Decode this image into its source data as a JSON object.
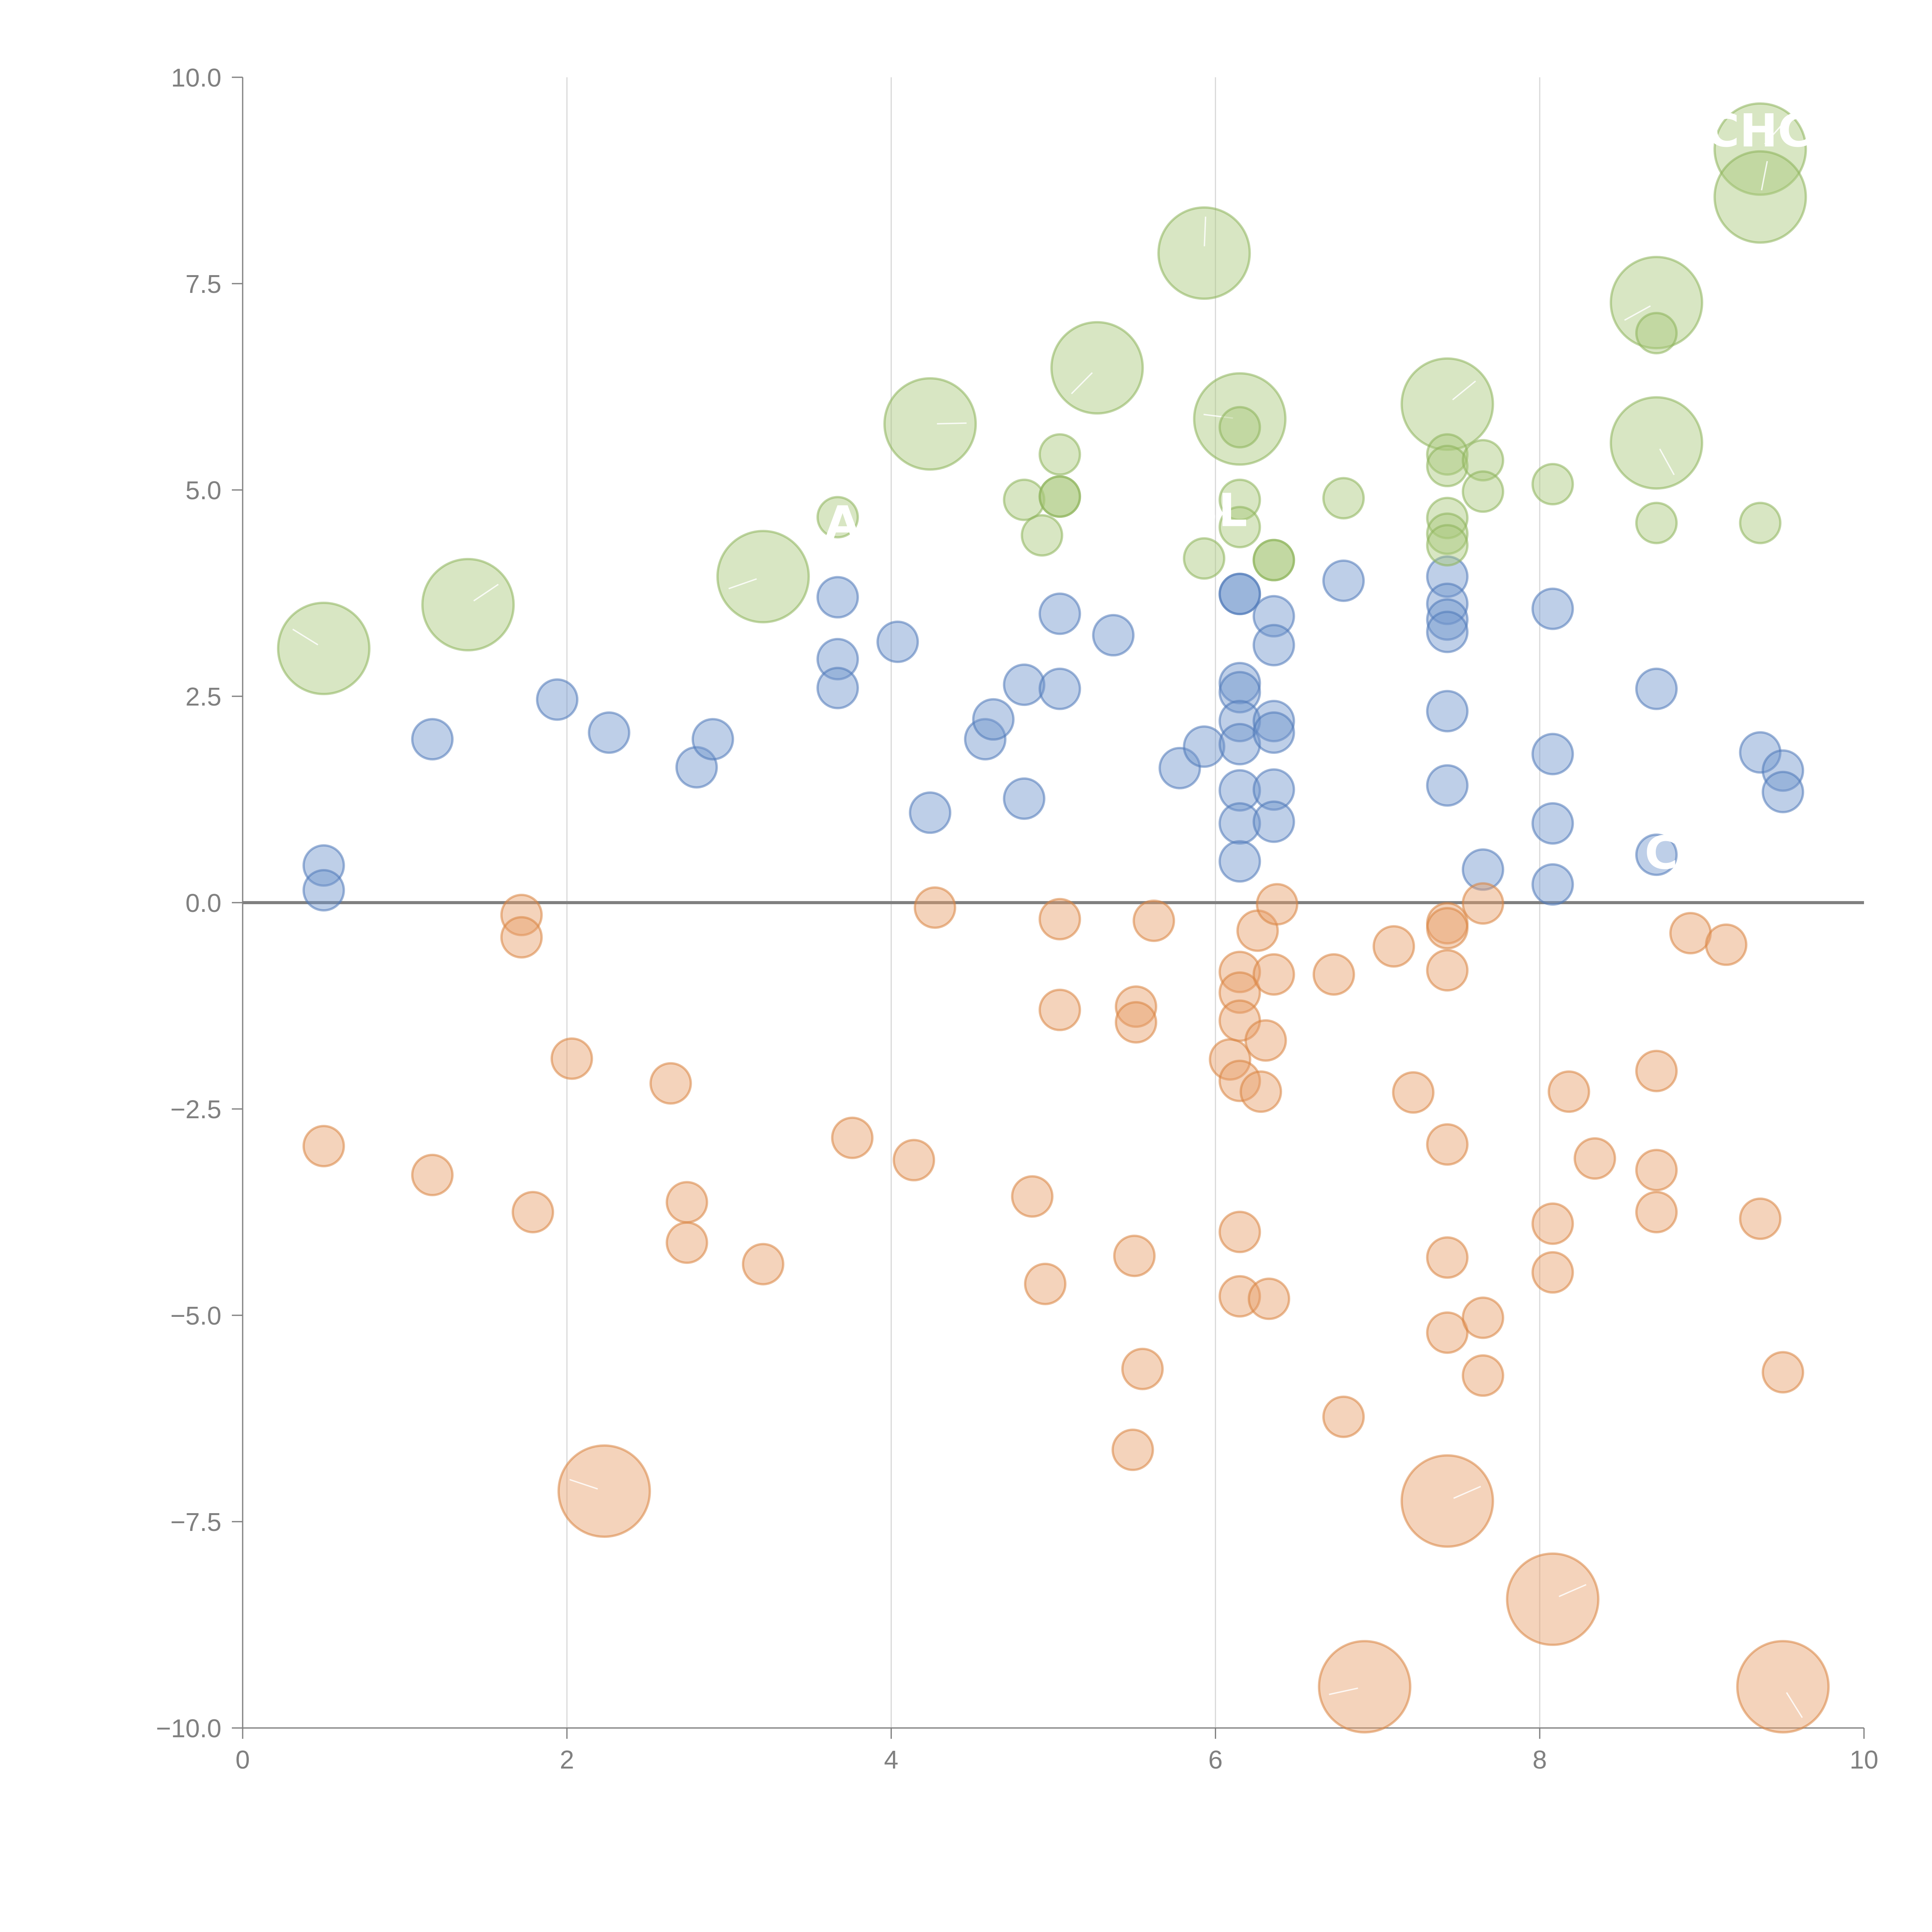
{
  "chart_data": {
    "type": "scatter",
    "title": "",
    "xlabel": "",
    "ylabel": "",
    "xlim": [
      0,
      10
    ],
    "ylim": [
      -10,
      10
    ],
    "x_ticks": [
      0,
      2,
      4,
      6,
      8,
      10
    ],
    "x_tick_labels": [
      "0",
      "2",
      "4",
      "6",
      "8",
      "10"
    ],
    "y_ticks": [
      10,
      7.5,
      5,
      2.5,
      0,
      -2.5,
      -5,
      -7.5,
      -10
    ],
    "y_tick_labels": [
      "10.0",
      "7.5",
      "5.0",
      "2.5",
      "0.0",
      "−2.5",
      "−5.0",
      "−7.5",
      "−10.0"
    ],
    "vertical_grid_at": [
      2,
      4,
      6,
      8
    ],
    "reference_line_y": 0,
    "colors": {
      "blue_fill": "#6f95cc",
      "blue_stroke": "#4f79b8",
      "orange_fill": "#e79d68",
      "orange_stroke": "#d9833f",
      "green_fill": "#a8c879",
      "green_stroke": "#8db25a",
      "axis": "#808080",
      "grid": "#d9d9d9"
    },
    "bubble_labels": [
      {
        "text": "BL",
        "x": 6.0,
        "y": 4.75
      },
      {
        "text": "A",
        "x": 3.7,
        "y": 4.6
      },
      {
        "text": "C",
        "x": 8.75,
        "y": 0.6
      },
      {
        "text": "CHC",
        "x": 9.35,
        "y": 9.35
      }
    ],
    "series": [
      {
        "name": "positive",
        "color": "blue",
        "points": [
          {
            "x": 0.5,
            "y": 0.45,
            "size": 1
          },
          {
            "x": 0.5,
            "y": 0.15,
            "size": 1
          },
          {
            "x": 1.17,
            "y": 1.98,
            "size": 1
          },
          {
            "x": 1.94,
            "y": 2.46,
            "size": 1
          },
          {
            "x": 2.26,
            "y": 2.06,
            "size": 1
          },
          {
            "x": 2.8,
            "y": 1.64,
            "size": 1
          },
          {
            "x": 2.9,
            "y": 1.98,
            "size": 1
          },
          {
            "x": 3.67,
            "y": 3.7,
            "size": 1
          },
          {
            "x": 3.67,
            "y": 2.95,
            "size": 1
          },
          {
            "x": 3.67,
            "y": 2.6,
            "size": 1
          },
          {
            "x": 4.04,
            "y": 3.16,
            "size": 1
          },
          {
            "x": 4.24,
            "y": 1.09,
            "size": 1
          },
          {
            "x": 4.58,
            "y": 1.98,
            "size": 1
          },
          {
            "x": 4.63,
            "y": 2.22,
            "size": 1
          },
          {
            "x": 4.82,
            "y": 2.64,
            "size": 1
          },
          {
            "x": 4.82,
            "y": 1.26,
            "size": 1
          },
          {
            "x": 5.04,
            "y": 3.5,
            "size": 1
          },
          {
            "x": 5.04,
            "y": 2.59,
            "size": 1
          },
          {
            "x": 5.37,
            "y": 3.24,
            "size": 1
          },
          {
            "x": 5.78,
            "y": 1.63,
            "size": 1
          },
          {
            "x": 5.93,
            "y": 1.89,
            "size": 1
          },
          {
            "x": 6.15,
            "y": 3.74,
            "size": 1
          },
          {
            "x": 6.15,
            "y": 3.74,
            "size": 1
          },
          {
            "x": 6.15,
            "y": 2.66,
            "size": 1
          },
          {
            "x": 6.15,
            "y": 2.55,
            "size": 1
          },
          {
            "x": 6.15,
            "y": 2.2,
            "size": 1
          },
          {
            "x": 6.15,
            "y": 1.92,
            "size": 1
          },
          {
            "x": 6.15,
            "y": 1.36,
            "size": 1
          },
          {
            "x": 6.15,
            "y": 0.96,
            "size": 1
          },
          {
            "x": 6.15,
            "y": 0.5,
            "size": 1
          },
          {
            "x": 6.36,
            "y": 3.47,
            "size": 1
          },
          {
            "x": 6.36,
            "y": 3.12,
            "size": 1
          },
          {
            "x": 6.36,
            "y": 2.2,
            "size": 1
          },
          {
            "x": 6.36,
            "y": 2.06,
            "size": 1
          },
          {
            "x": 6.36,
            "y": 1.37,
            "size": 1
          },
          {
            "x": 6.36,
            "y": 0.98,
            "size": 1
          },
          {
            "x": 6.79,
            "y": 3.9,
            "size": 1
          },
          {
            "x": 7.43,
            "y": 3.95,
            "size": 1
          },
          {
            "x": 7.43,
            "y": 3.62,
            "size": 1
          },
          {
            "x": 7.43,
            "y": 3.43,
            "size": 1
          },
          {
            "x": 7.43,
            "y": 3.28,
            "size": 1
          },
          {
            "x": 7.43,
            "y": 2.32,
            "size": 1
          },
          {
            "x": 7.43,
            "y": 1.42,
            "size": 1
          },
          {
            "x": 7.65,
            "y": 0.4,
            "size": 1
          },
          {
            "x": 8.08,
            "y": 3.56,
            "size": 1
          },
          {
            "x": 8.08,
            "y": 1.8,
            "size": 1
          },
          {
            "x": 8.08,
            "y": 0.96,
            "size": 1
          },
          {
            "x": 8.08,
            "y": 0.22,
            "size": 1
          },
          {
            "x": 8.72,
            "y": 2.59,
            "size": 1
          },
          {
            "x": 8.72,
            "y": 0.58,
            "size": 1
          },
          {
            "x": 9.36,
            "y": 1.82,
            "size": 1
          },
          {
            "x": 9.5,
            "y": 1.6,
            "size": 1
          },
          {
            "x": 9.5,
            "y": 1.34,
            "size": 1
          }
        ]
      },
      {
        "name": "negative",
        "color": "orange",
        "points": [
          {
            "x": 0.5,
            "y": -2.95,
            "size": 1
          },
          {
            "x": 1.17,
            "y": -3.3,
            "size": 1
          },
          {
            "x": 1.72,
            "y": -0.15,
            "size": 1
          },
          {
            "x": 1.72,
            "y": -0.42,
            "size": 1
          },
          {
            "x": 1.79,
            "y": -3.75,
            "size": 1
          },
          {
            "x": 2.03,
            "y": -1.89,
            "size": 1
          },
          {
            "x": 2.23,
            "y": -7.13,
            "size": 3
          },
          {
            "x": 2.64,
            "y": -2.19,
            "size": 1
          },
          {
            "x": 2.74,
            "y": -3.63,
            "size": 1
          },
          {
            "x": 2.74,
            "y": -4.12,
            "size": 1
          },
          {
            "x": 3.21,
            "y": -4.38,
            "size": 1
          },
          {
            "x": 3.76,
            "y": -2.85,
            "size": 1
          },
          {
            "x": 4.14,
            "y": -3.12,
            "size": 1
          },
          {
            "x": 4.27,
            "y": -0.06,
            "size": 1
          },
          {
            "x": 4.87,
            "y": -3.56,
            "size": 1
          },
          {
            "x": 4.95,
            "y": -4.62,
            "size": 1
          },
          {
            "x": 5.04,
            "y": -0.2,
            "size": 1
          },
          {
            "x": 5.04,
            "y": -1.3,
            "size": 1
          },
          {
            "x": 5.49,
            "y": -6.63,
            "size": 1
          },
          {
            "x": 5.5,
            "y": -4.28,
            "size": 1
          },
          {
            "x": 5.51,
            "y": -1.26,
            "size": 1
          },
          {
            "x": 5.51,
            "y": -1.45,
            "size": 1
          },
          {
            "x": 5.55,
            "y": -5.65,
            "size": 1
          },
          {
            "x": 5.62,
            "y": -0.22,
            "size": 1
          },
          {
            "x": 6.09,
            "y": -1.9,
            "size": 1
          },
          {
            "x": 6.15,
            "y": -0.84,
            "size": 1
          },
          {
            "x": 6.15,
            "y": -1.09,
            "size": 1
          },
          {
            "x": 6.15,
            "y": -1.43,
            "size": 1
          },
          {
            "x": 6.15,
            "y": -2.16,
            "size": 1
          },
          {
            "x": 6.15,
            "y": -3.99,
            "size": 1
          },
          {
            "x": 6.15,
            "y": -4.77,
            "size": 1
          },
          {
            "x": 6.26,
            "y": -0.34,
            "size": 1
          },
          {
            "x": 6.28,
            "y": -2.29,
            "size": 1
          },
          {
            "x": 6.31,
            "y": -1.67,
            "size": 1
          },
          {
            "x": 6.33,
            "y": -4.8,
            "size": 1
          },
          {
            "x": 6.36,
            "y": -0.87,
            "size": 1
          },
          {
            "x": 6.38,
            "y": -0.02,
            "size": 1
          },
          {
            "x": 6.73,
            "y": -0.87,
            "size": 1
          },
          {
            "x": 6.79,
            "y": -6.23,
            "size": 1
          },
          {
            "x": 6.92,
            "y": -9.5,
            "size": 3
          },
          {
            "x": 7.1,
            "y": -0.53,
            "size": 1
          },
          {
            "x": 7.22,
            "y": -2.3,
            "size": 1
          },
          {
            "x": 7.43,
            "y": -0.25,
            "size": 1
          },
          {
            "x": 7.43,
            "y": -0.31,
            "size": 1
          },
          {
            "x": 7.43,
            "y": -0.82,
            "size": 1
          },
          {
            "x": 7.43,
            "y": -2.93,
            "size": 1
          },
          {
            "x": 7.43,
            "y": -4.3,
            "size": 1
          },
          {
            "x": 7.43,
            "y": -5.21,
            "size": 1
          },
          {
            "x": 7.43,
            "y": -7.25,
            "size": 3
          },
          {
            "x": 7.65,
            "y": -0.01,
            "size": 1
          },
          {
            "x": 7.65,
            "y": -5.03,
            "size": 1
          },
          {
            "x": 7.65,
            "y": -5.73,
            "size": 1
          },
          {
            "x": 8.08,
            "y": -3.89,
            "size": 1
          },
          {
            "x": 8.08,
            "y": -4.48,
            "size": 1
          },
          {
            "x": 8.08,
            "y": -8.44,
            "size": 3
          },
          {
            "x": 8.18,
            "y": -2.29,
            "size": 1
          },
          {
            "x": 8.34,
            "y": -3.1,
            "size": 1
          },
          {
            "x": 8.72,
            "y": -2.04,
            "size": 1
          },
          {
            "x": 8.72,
            "y": -3.24,
            "size": 1
          },
          {
            "x": 8.72,
            "y": -3.75,
            "size": 1
          },
          {
            "x": 8.93,
            "y": -0.37,
            "size": 1
          },
          {
            "x": 9.15,
            "y": -0.51,
            "size": 1
          },
          {
            "x": 9.36,
            "y": -3.83,
            "size": 1
          },
          {
            "x": 9.5,
            "y": -5.69,
            "size": 1
          },
          {
            "x": 9.5,
            "y": -9.5,
            "size": 3
          }
        ]
      },
      {
        "name": "upper",
        "color": "green",
        "points": [
          {
            "x": 0.5,
            "y": 3.08,
            "size": 3
          },
          {
            "x": 1.39,
            "y": 3.61,
            "size": 3
          },
          {
            "x": 3.21,
            "y": 3.95,
            "size": 3
          },
          {
            "x": 3.67,
            "y": 4.67,
            "size": 1
          },
          {
            "x": 4.24,
            "y": 5.8,
            "size": 3
          },
          {
            "x": 4.82,
            "y": 4.88,
            "size": 1
          },
          {
            "x": 4.93,
            "y": 4.45,
            "size": 1
          },
          {
            "x": 5.04,
            "y": 5.43,
            "size": 1
          },
          {
            "x": 5.04,
            "y": 4.92,
            "size": 1
          },
          {
            "x": 5.04,
            "y": 4.92,
            "size": 1
          },
          {
            "x": 5.27,
            "y": 6.48,
            "size": 3
          },
          {
            "x": 5.93,
            "y": 7.87,
            "size": 3
          },
          {
            "x": 5.93,
            "y": 4.17,
            "size": 1
          },
          {
            "x": 6.15,
            "y": 5.86,
            "size": 3
          },
          {
            "x": 6.15,
            "y": 5.76,
            "size": 1
          },
          {
            "x": 6.15,
            "y": 4.88,
            "size": 1
          },
          {
            "x": 6.15,
            "y": 4.55,
            "size": 1
          },
          {
            "x": 6.36,
            "y": 4.15,
            "size": 1
          },
          {
            "x": 6.36,
            "y": 4.15,
            "size": 1
          },
          {
            "x": 6.79,
            "y": 4.9,
            "size": 1
          },
          {
            "x": 7.43,
            "y": 6.04,
            "size": 3
          },
          {
            "x": 7.43,
            "y": 5.43,
            "size": 1
          },
          {
            "x": 7.43,
            "y": 5.29,
            "size": 1
          },
          {
            "x": 7.43,
            "y": 4.66,
            "size": 1
          },
          {
            "x": 7.43,
            "y": 4.47,
            "size": 1
          },
          {
            "x": 7.43,
            "y": 4.33,
            "size": 1
          },
          {
            "x": 7.65,
            "y": 5.36,
            "size": 1
          },
          {
            "x": 7.65,
            "y": 4.98,
            "size": 1
          },
          {
            "x": 8.08,
            "y": 5.07,
            "size": 1
          },
          {
            "x": 8.72,
            "y": 7.27,
            "size": 3
          },
          {
            "x": 8.72,
            "y": 6.9,
            "size": 1
          },
          {
            "x": 8.72,
            "y": 5.57,
            "size": 3
          },
          {
            "x": 8.72,
            "y": 4.6,
            "size": 1
          },
          {
            "x": 9.36,
            "y": 9.13,
            "size": 3
          },
          {
            "x": 9.36,
            "y": 8.55,
            "size": 3
          },
          {
            "x": 9.36,
            "y": 4.6,
            "size": 1
          }
        ]
      }
    ]
  }
}
